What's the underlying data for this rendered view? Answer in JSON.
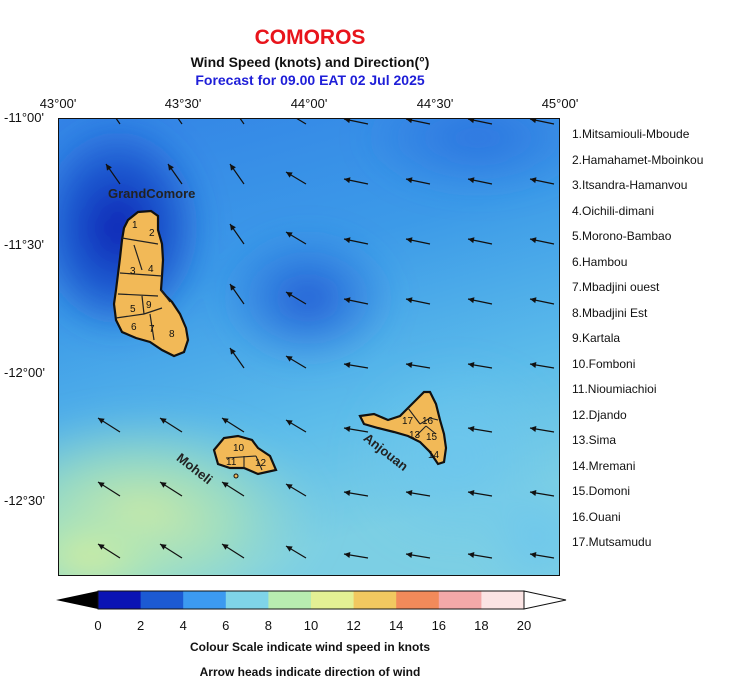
{
  "header": {
    "title": "COMOROS",
    "subtitle": "Wind Speed (knots) and Direction(°)",
    "forecast": "Forecast for  09.00 EAT 02 Jul 2025"
  },
  "axes": {
    "lon_labels": [
      "43°00'",
      "43°30'",
      "44°00'",
      "44°30'",
      "45°00'"
    ],
    "lat_labels": [
      "-11°00'",
      "-11°30'",
      "-12°00'",
      "-12°30'"
    ]
  },
  "islands": {
    "grand_comore": "GrandComore",
    "moheli": "Moheli",
    "anjouan": "Anjouan",
    "district_numbers": [
      "1",
      "2",
      "3",
      "4",
      "5",
      "6",
      "7",
      "8",
      "9",
      "10",
      "11",
      "12",
      "13",
      "14",
      "15",
      "16",
      "17"
    ]
  },
  "legend": {
    "districts": [
      "1.Mitsamiouli-Mboude",
      "2.Hamahamet-Mboinkou",
      "3.Itsandra-Hamanvou",
      "4.Oichili-dimani",
      "5.Morono-Bambao",
      "6.Hambou",
      "7.Mbadjini ouest",
      "8.Mbadjini Est",
      "9.Kartala",
      "10.Fomboni",
      "11.Nioumiachioi",
      "12.Djando",
      "13.Sima",
      "14.Mremani",
      "15.Domoni",
      "16.Ouani",
      "17.Mutsamudu"
    ]
  },
  "colorbar": {
    "tick_labels": [
      "0",
      "2",
      "4",
      "6",
      "8",
      "10",
      "12",
      "14",
      "16",
      "18",
      "20"
    ],
    "colors": [
      "#0a14b4",
      "#1c5ad2",
      "#3c9af0",
      "#7fd4e8",
      "#b8ecb0",
      "#e4f094",
      "#f2c860",
      "#f28a5a",
      "#f4a8a8",
      "#fbe4e4"
    ],
    "under_color": "#000000",
    "over_color": "#ffffff",
    "caption1": "Colour Scale indicate wind speed in knots",
    "caption2": "Arrow heads indicate direction of wind"
  },
  "map_colors": {
    "land": "#f2b957",
    "coast": "#111111"
  }
}
